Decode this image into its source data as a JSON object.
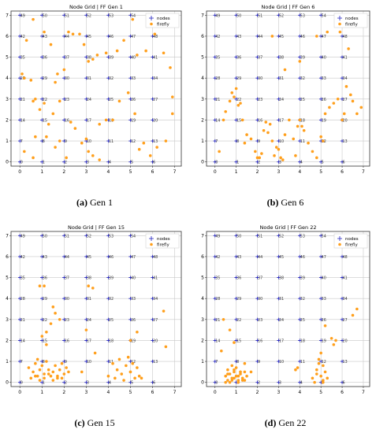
{
  "colors": {
    "nodes": "#1f1fbf",
    "firefly": "#ff9f1c",
    "grid": "#c8c8c8",
    "frame": "#333333"
  },
  "captions": [
    {
      "label": "(a)",
      "text": "Gen 1"
    },
    {
      "label": "(b)",
      "text": "Gen 6"
    },
    {
      "label": "(c)",
      "text": "Gen 15"
    },
    {
      "label": "(d)",
      "text": "Gen 22"
    }
  ],
  "chart_data": [
    {
      "type": "scatter",
      "title": "Node Grid | FF Gen 1",
      "xlim": [
        -0.4,
        7.3
      ],
      "ylim": [
        -0.2,
        7.2
      ],
      "xticks": [
        0,
        1,
        2,
        3,
        4,
        5,
        6,
        7
      ],
      "yticks": [
        0,
        1,
        2,
        3,
        4,
        5,
        6,
        7
      ],
      "grid": true,
      "legend": "top-right",
      "series": [
        {
          "name": "nodes",
          "marker": "plus",
          "grid_nodes": {
            "cols": 7,
            "rows": 8
          }
        },
        {
          "name": "firefly",
          "marker": "dot",
          "x": [
            0.2,
            0.6,
            0.7,
            0.6,
            1.2,
            1.6,
            1.8,
            2.1,
            2.2,
            2.7,
            2.9,
            3.1,
            3.3,
            3.5,
            3.9,
            4.4,
            4.7,
            5.1,
            5.3,
            5.7,
            6.1,
            6.5,
            6.8,
            6.9,
            0.1,
            0.2,
            0.5,
            0.7,
            0.9,
            1.1,
            1.3,
            1.5,
            1.6,
            1.8,
            2.0,
            2.3,
            2.5,
            2.8,
            3.0,
            3.1,
            3.3,
            3.6,
            3.9,
            4.2,
            4.5,
            4.9,
            5.2,
            5.6,
            5.9,
            6.2,
            6.6,
            6.9,
            0.3,
            0.6,
            1.1,
            1.4,
            1.7,
            2.4,
            3.6,
            5.4
          ],
          "y": [
            0.5,
            0.2,
            1.2,
            2.9,
            1.2,
            0.7,
            1.0,
            0.2,
            6.2,
            6.1,
            5.6,
            4.8,
            4.9,
            5.1,
            5.2,
            5.3,
            5.8,
            6.8,
            5.1,
            5.3,
            6.1,
            5.2,
            4.5,
            3.1,
            4.2,
            4.0,
            3.9,
            3.0,
            2.5,
            2.8,
            1.8,
            2.3,
            3.8,
            2.9,
            4.4,
            1.9,
            1.6,
            0.9,
            1.1,
            0.5,
            0.3,
            1.8,
            2.0,
            2.0,
            2.9,
            3.3,
            2.3,
            0.9,
            0.3,
            0.7,
            1.0,
            2.3,
            5.8,
            6.8,
            6.2,
            5.6,
            4.2,
            6.1,
            0.1,
            0.6
          ]
        }
      ]
    },
    {
      "type": "scatter",
      "title": "Node Grid | FF Gen 6",
      "xlim": [
        -0.4,
        7.3
      ],
      "ylim": [
        -0.2,
        7.2
      ],
      "xticks": [
        0,
        1,
        2,
        3,
        4,
        5,
        6,
        7
      ],
      "yticks": [
        0,
        1,
        2,
        3,
        4,
        5,
        6,
        7
      ],
      "grid": true,
      "legend": "top-right",
      "series": [
        {
          "name": "nodes",
          "marker": "plus",
          "grid_nodes": {
            "cols": 7,
            "rows": 8
          }
        },
        {
          "name": "firefly",
          "marker": "dot",
          "x": [
            0.2,
            0.5,
            0.7,
            0.8,
            0.9,
            1.0,
            1.2,
            1.3,
            1.4,
            1.5,
            1.7,
            1.9,
            2.0,
            2.2,
            2.3,
            2.4,
            2.5,
            2.6,
            2.7,
            2.8,
            2.9,
            3.0,
            3.1,
            3.2,
            3.3,
            3.5,
            3.7,
            3.9,
            4.0,
            4.1,
            4.2,
            4.4,
            4.6,
            4.8,
            5.0,
            5.1,
            5.2,
            5.4,
            5.6,
            5.8,
            6.0,
            6.1,
            6.2,
            6.4,
            6.5,
            6.7,
            6.9,
            0.4,
            1.1,
            2.7,
            3.3,
            4.0,
            4.8,
            5.3,
            5.9,
            6.3,
            3.8,
            2.1
          ],
          "y": [
            0.5,
            2.4,
            2.9,
            3.3,
            3.1,
            3.5,
            2.8,
            2.0,
            0.9,
            1.3,
            1.1,
            0.5,
            0.2,
            0.4,
            1.5,
            1.9,
            1.4,
            1.8,
            1.0,
            0.3,
            0.7,
            0.6,
            0.2,
            0.1,
            1.3,
            2.0,
            1.1,
            1.7,
            2.0,
            1.7,
            1.5,
            0.9,
            0.5,
            0.2,
            1.2,
            1.0,
            2.3,
            2.6,
            2.8,
            3.0,
            2.0,
            2.3,
            3.6,
            3.2,
            2.9,
            2.3,
            2.6,
            2.0,
            2.7,
            6.0,
            4.4,
            4.8,
            6.0,
            6.2,
            6.2,
            5.4,
            0.3,
            0.2
          ]
        }
      ]
    },
    {
      "type": "scatter",
      "title": "Node Grid | FF Gen 15",
      "xlim": [
        -0.4,
        7.3
      ],
      "ylim": [
        -0.2,
        7.2
      ],
      "xticks": [
        0,
        1,
        2,
        3,
        4,
        5,
        6,
        7
      ],
      "yticks": [
        0,
        1,
        2,
        3,
        4,
        5,
        6,
        7
      ],
      "grid": true,
      "legend": "top-right",
      "series": [
        {
          "name": "nodes",
          "marker": "plus",
          "grid_nodes": {
            "cols": 7,
            "rows": 8
          }
        },
        {
          "name": "firefly",
          "marker": "dot",
          "x": [
            0.4,
            0.6,
            0.7,
            0.8,
            0.9,
            1.0,
            1.1,
            1.2,
            1.3,
            1.4,
            1.5,
            1.6,
            1.7,
            1.8,
            1.9,
            2.0,
            2.1,
            2.2,
            0.5,
            0.7,
            0.9,
            1.1,
            1.3,
            1.5,
            1.7,
            1.9,
            0.8,
            1.0,
            1.2,
            1.4,
            1.6,
            2.8,
            3.0,
            3.4,
            4.0,
            4.2,
            4.4,
            4.5,
            4.6,
            4.8,
            4.9,
            5.0,
            5.1,
            5.2,
            5.3,
            5.4,
            4.3,
            4.7,
            5.0,
            5.3,
            5.5,
            5.0,
            1.2,
            1.5,
            1.8,
            3.1,
            3.3,
            0.9,
            6.5,
            6.6,
            1.1
          ],
          "y": [
            0.7,
            0.5,
            0.9,
            0.3,
            0.6,
            0.8,
            0.4,
            1.0,
            0.6,
            0.3,
            0.5,
            0.8,
            0.2,
            0.6,
            0.9,
            0.4,
            0.7,
            0.5,
            0.2,
            0.3,
            0.1,
            0.2,
            0.4,
            0.1,
            0.3,
            0.2,
            1.1,
            2.2,
            2.4,
            2.8,
            3.3,
            0.5,
            2.5,
            1.4,
            0.3,
            0.9,
            0.6,
            1.1,
            0.4,
            0.8,
            1.2,
            0.5,
            0.9,
            0.2,
            0.7,
            0.3,
            0.2,
            0.1,
            2.0,
            2.4,
            0.2,
            0.5,
            1.8,
            3.6,
            3.0,
            4.6,
            4.5,
            4.6,
            3.4,
            1.7,
            4.6
          ]
        }
      ]
    },
    {
      "type": "scatter",
      "title": "Node Grid | FF Gen 22",
      "xlim": [
        -0.4,
        7.3
      ],
      "ylim": [
        -0.2,
        7.2
      ],
      "xticks": [
        0,
        1,
        2,
        3,
        4,
        5,
        6,
        7
      ],
      "yticks": [
        0,
        1,
        2,
        3,
        4,
        5,
        6,
        7
      ],
      "grid": true,
      "legend": "top-right",
      "series": [
        {
          "name": "nodes",
          "marker": "plus",
          "grid_nodes": {
            "cols": 7,
            "rows": 8
          }
        },
        {
          "name": "firefly",
          "marker": "dot",
          "x": [
            0.5,
            0.6,
            0.7,
            0.8,
            0.9,
            1.0,
            1.1,
            1.2,
            1.3,
            1.4,
            1.5,
            0.6,
            0.8,
            1.0,
            1.2,
            1.4,
            0.7,
            0.9,
            1.1,
            1.3,
            0.5,
            0.8,
            1.1,
            1.4,
            0.6,
            0.9,
            1.2,
            0.3,
            0.4,
            0.7,
            0.9,
            1.7,
            4.6,
            4.8,
            4.9,
            5.0,
            5.1,
            5.2,
            5.3,
            4.7,
            4.9,
            5.1,
            5.0,
            5.2,
            4.8,
            5.5,
            5.6,
            5.7,
            5.1,
            6.5,
            6.7,
            3.8,
            3.9
          ],
          "y": [
            0.3,
            0.1,
            0.4,
            0.2,
            0.5,
            0.3,
            0.1,
            0.4,
            0.2,
            0.5,
            0.3,
            0.6,
            0.8,
            0.7,
            0.5,
            0.9,
            0.0,
            0.2,
            0.3,
            0.1,
            0.0,
            0.1,
            0.0,
            0.1,
            0.4,
            0.6,
            0.5,
            1.5,
            3.0,
            2.5,
            1.9,
            0.5,
            0.2,
            0.6,
            0.9,
            0.3,
            0.1,
            0.5,
            0.2,
            0.0,
            1.1,
            0.8,
            1.4,
            2.7,
            0.4,
            2.1,
            1.8,
            2.0,
            0.0,
            3.2,
            3.5,
            0.6,
            0.7
          ]
        }
      ]
    }
  ]
}
